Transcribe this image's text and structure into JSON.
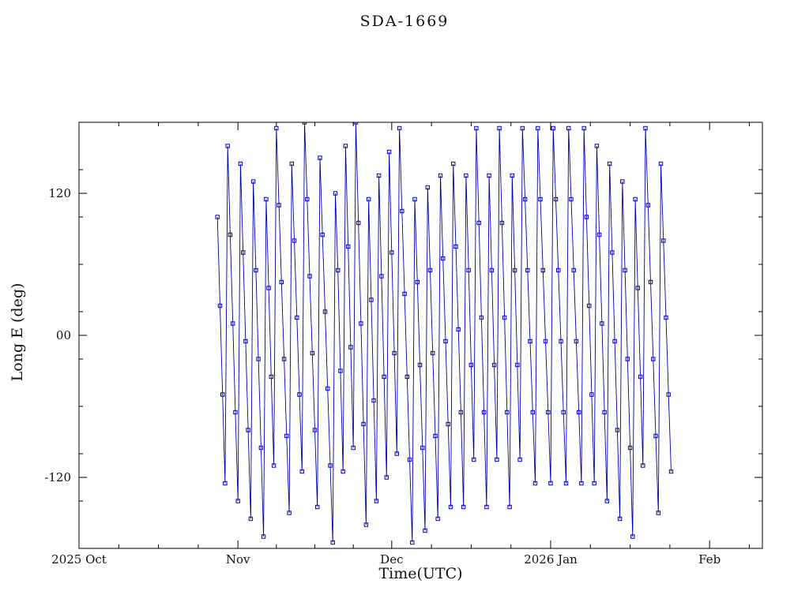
{
  "chart_data": {
    "type": "line",
    "title": "SDA-1669",
    "xlabel": "Time(UTC)",
    "ylabel": "Long E (deg)",
    "xlim_days": [
      0,
      133.3
    ],
    "ylim": [
      -180,
      180
    ],
    "x_ticks": [
      {
        "day": 0,
        "label": "2025 Oct"
      },
      {
        "day": 31,
        "label": "Nov"
      },
      {
        "day": 61,
        "label": "Dec"
      },
      {
        "day": 92,
        "label": "2026 Jan"
      },
      {
        "day": 123,
        "label": "Feb"
      }
    ],
    "y_ticks": [
      {
        "value": 120,
        "label": "120"
      },
      {
        "value": 0,
        "label": "00"
      },
      {
        "value": -120,
        "label": "-120"
      }
    ],
    "y_minor_step": 40,
    "grid": false,
    "legend": "none",
    "marker": "open-square",
    "line_color": "#0000A8",
    "frame_color": "#000000",
    "series": [
      {
        "name": "longitude-east-deg",
        "x_start_day": 27,
        "x_step_days": 0.5,
        "y": [
          100,
          25,
          -50,
          -125,
          160,
          85,
          10,
          -65,
          -140,
          145,
          70,
          -5,
          -80,
          -155,
          130,
          55,
          -20,
          -95,
          -170,
          115,
          40,
          -35,
          -110,
          175,
          110,
          45,
          -20,
          -85,
          -150,
          145,
          80,
          15,
          -50,
          -115,
          180,
          115,
          50,
          -15,
          -80,
          -145,
          150,
          85,
          20,
          -45,
          -110,
          -175,
          120,
          55,
          -30,
          -115,
          160,
          75,
          -10,
          -95,
          180,
          95,
          10,
          -75,
          -160,
          115,
          30,
          -55,
          -140,
          135,
          50,
          -35,
          -120,
          155,
          70,
          -15,
          -100,
          175,
          105,
          35,
          -35,
          -105,
          -175,
          115,
          45,
          -25,
          -95,
          -165,
          125,
          55,
          -15,
          -85,
          -155,
          135,
          65,
          -5,
          -75,
          -145,
          145,
          75,
          5,
          -65,
          -145,
          135,
          55,
          -25,
          -105,
          175,
          95,
          15,
          -65,
          -145,
          135,
          55,
          -25,
          -105,
          175,
          95,
          15,
          -65,
          -145,
          135,
          55,
          -25,
          -105,
          175,
          115,
          55,
          -5,
          -65,
          -125,
          175,
          115,
          55,
          -5,
          -65,
          -125,
          175,
          115,
          55,
          -5,
          -65,
          -125,
          175,
          115,
          55,
          -5,
          -65,
          -125,
          175,
          100,
          25,
          -50,
          -125,
          160,
          85,
          10,
          -65,
          -140,
          145,
          70,
          -5,
          -80,
          -155,
          130,
          55,
          -20,
          -95,
          -170,
          115,
          40,
          -35,
          -110,
          175,
          110,
          45,
          -20,
          -85,
          -150,
          145,
          80,
          15,
          -50,
          -115
        ]
      }
    ]
  }
}
